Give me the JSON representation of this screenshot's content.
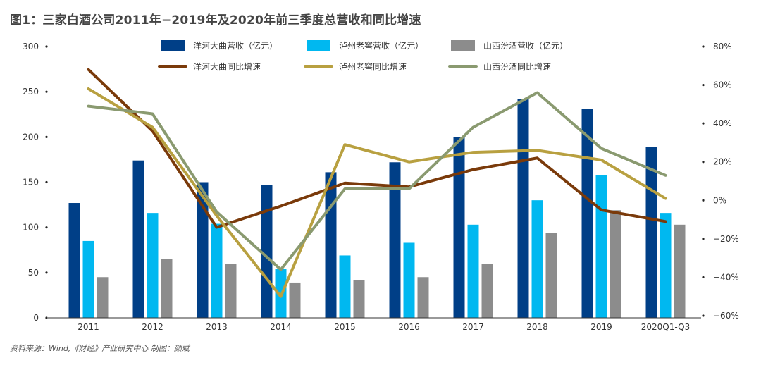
{
  "title": "图1：三家白酒公司2011年−2019年及2020年前三季度总营收和同比增速",
  "source": "资料来源：Wind,《财经》产业研究中心    制图：颜斌",
  "chart_data": {
    "type": "bar",
    "categories": [
      "2011",
      "2012",
      "2013",
      "2014",
      "2015",
      "2016",
      "2017",
      "2018",
      "2019",
      "2020Q1-Q3"
    ],
    "y_left": {
      "ylim": [
        0,
        300
      ],
      "ticks": [
        "0",
        "50",
        "100",
        "150",
        "200",
        "250",
        "300"
      ]
    },
    "y_right": {
      "ylim": [
        -60,
        80
      ],
      "ticks": [
        "80%",
        "60%",
        "40%",
        "20%",
        "0%",
        "−20%",
        "−40%",
        "−60%"
      ]
    },
    "bar_series": [
      {
        "name": "洋河大曲营收（亿元）",
        "color": "#003F87",
        "values": [
          127,
          174,
          150,
          147,
          161,
          172,
          200,
          242,
          231,
          189
        ]
      },
      {
        "name": "泸州老窖营收（亿元）",
        "color": "#00B8F0",
        "values": [
          85,
          116,
          104,
          54,
          69,
          83,
          103,
          130,
          158,
          116
        ]
      },
      {
        "name": "山西汾酒营收（亿元）",
        "color": "#8C8C8C",
        "values": [
          45,
          65,
          60,
          39,
          42,
          45,
          60,
          94,
          119,
          103
        ]
      }
    ],
    "line_series": [
      {
        "name": "洋河大曲同比增速",
        "color": "#7A3A0A",
        "values": [
          68,
          36,
          -14,
          -3,
          9,
          7,
          16,
          22,
          -5,
          -11
        ]
      },
      {
        "name": "泸州老窖同比增速",
        "color": "#B8A040",
        "values": [
          58,
          38,
          -8,
          -50,
          29,
          20,
          25,
          26,
          21,
          1
        ]
      },
      {
        "name": "山西汾酒同比增速",
        "color": "#8A9A70",
        "values": [
          49,
          45,
          -6,
          -36,
          6,
          6,
          38,
          56,
          27,
          13
        ]
      }
    ],
    "legend_position": "top"
  }
}
